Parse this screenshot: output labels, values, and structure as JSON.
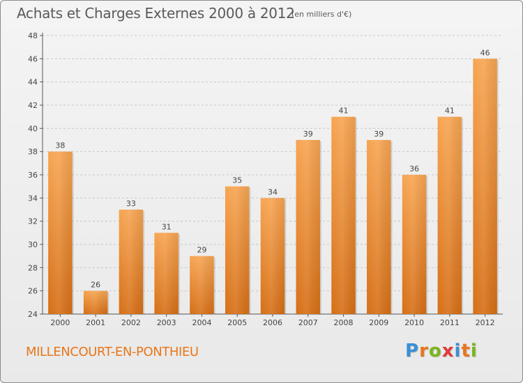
{
  "header": {
    "title": "Achats et Charges Externes 2000 à 2012",
    "subtitle": "(en milliers d'€)"
  },
  "footer": {
    "place": "MILLENCOURT-EN-PONTHIEU",
    "logo_text": "Proxiti",
    "logo_letters": [
      {
        "ch": "P",
        "color": "#3a8fd6"
      },
      {
        "ch": "r",
        "color": "#e8761c"
      },
      {
        "ch": "o",
        "color": "#7ab51d"
      },
      {
        "ch": "x",
        "color": "#e03a3a"
      },
      {
        "ch": "i",
        "color": "#3a8fd6"
      },
      {
        "ch": "t",
        "color": "#e8761c"
      },
      {
        "ch": "i",
        "color": "#7ab51d"
      }
    ]
  },
  "colors": {
    "bar_top": "#f7a552",
    "bar_bottom": "#d66f16",
    "grid": "#c8c8c8",
    "axis": "#555555",
    "accent": "#e8761c"
  },
  "chart_data": {
    "type": "bar",
    "categories": [
      "2000",
      "2001",
      "2002",
      "2003",
      "2004",
      "2005",
      "2006",
      "2007",
      "2008",
      "2009",
      "2010",
      "2011",
      "2012"
    ],
    "values": [
      38,
      26,
      33,
      31,
      29,
      35,
      34,
      39,
      41,
      39,
      36,
      41,
      46
    ],
    "title": "Achats et Charges Externes 2000 à 2012",
    "subtitle": "(en milliers d'€)",
    "xlabel": "",
    "ylabel": "",
    "ylim": [
      24,
      48
    ],
    "yticks": [
      24,
      26,
      28,
      30,
      32,
      34,
      36,
      38,
      40,
      42,
      44,
      46,
      48
    ],
    "grid": "horizontal dashed",
    "legend": "none"
  }
}
